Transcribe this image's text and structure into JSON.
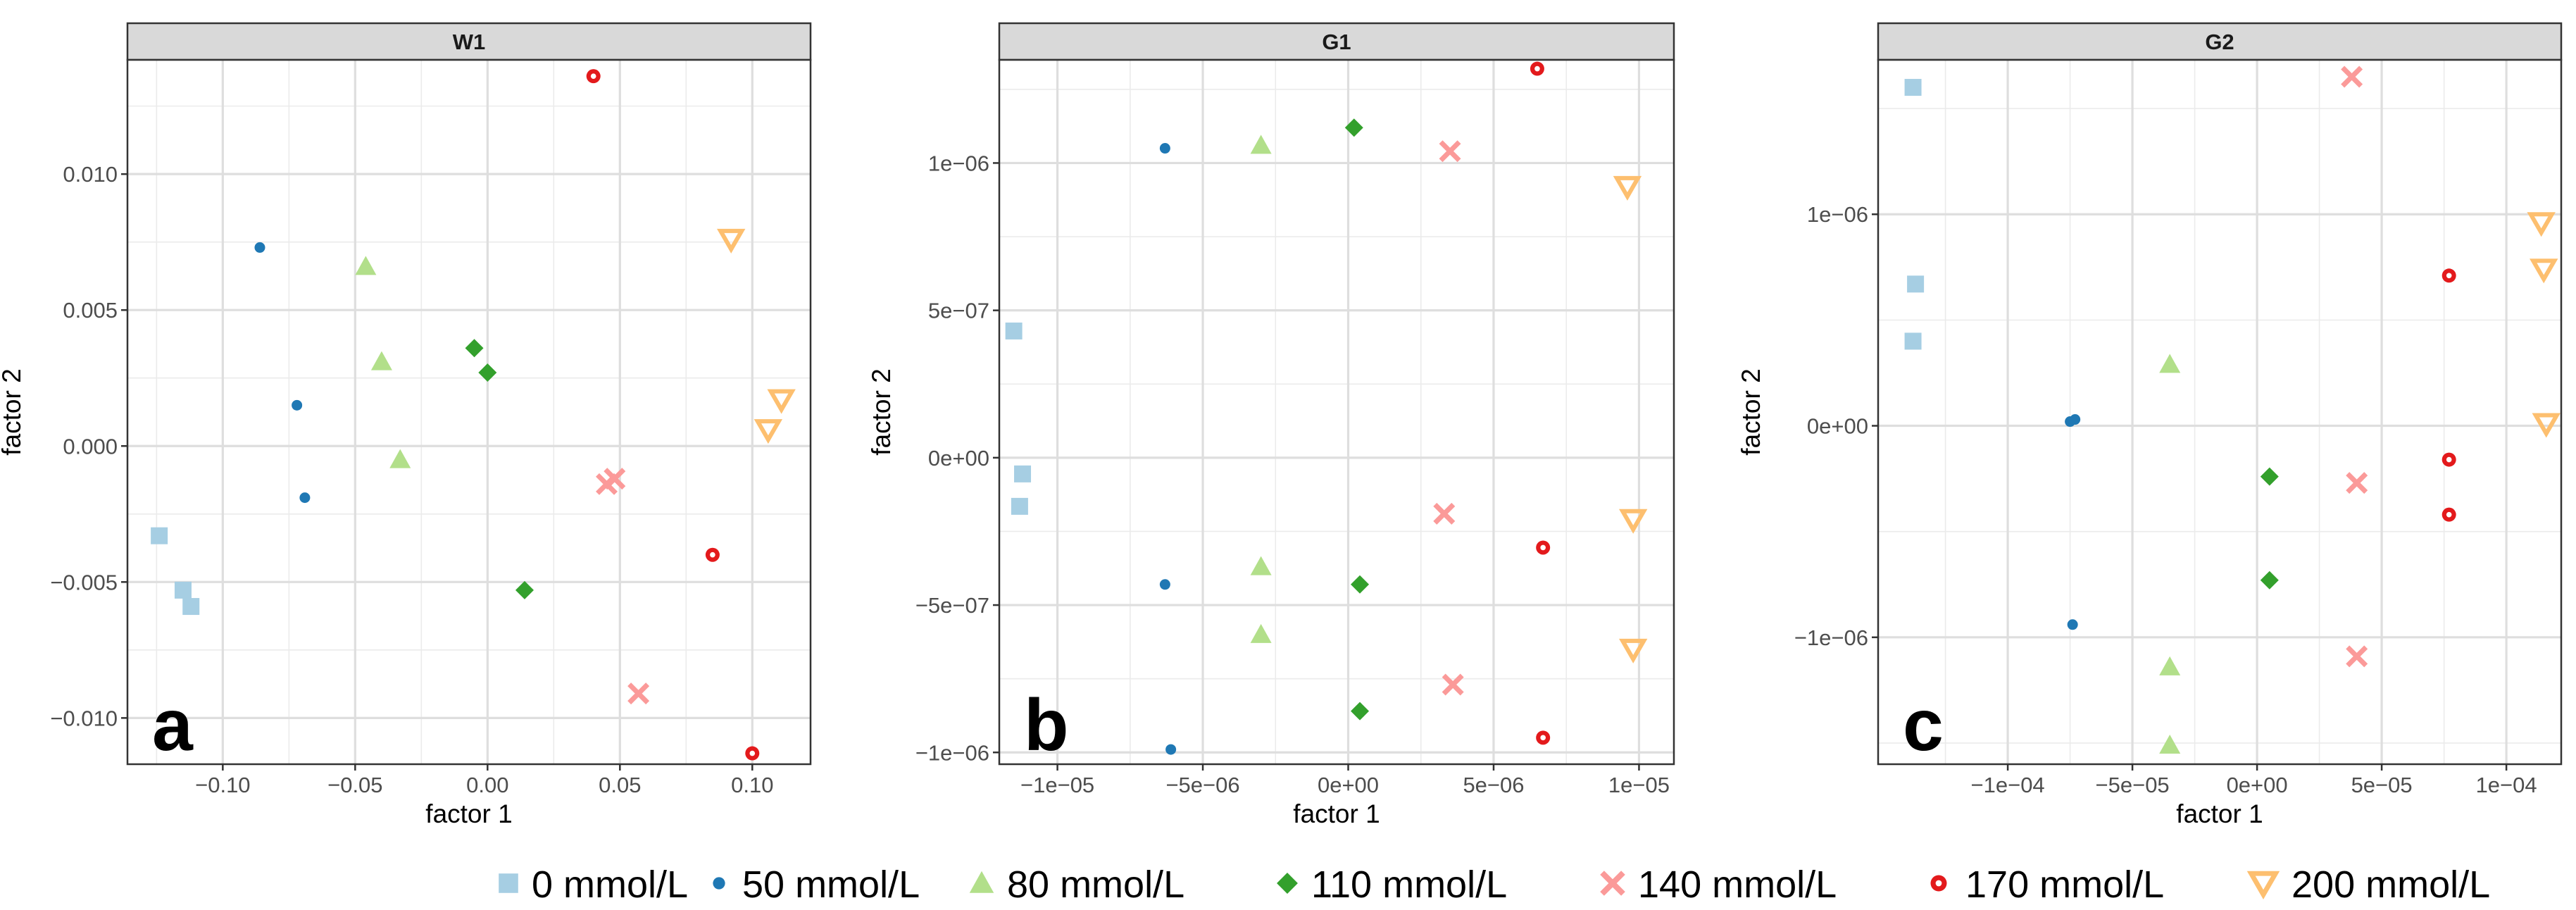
{
  "legend": [
    {
      "label": "0 mmol/L",
      "shape": "square",
      "color": "#a6cee3"
    },
    {
      "label": "50 mmol/L",
      "shape": "dot",
      "color": "#1f78b4"
    },
    {
      "label": "80 mmol/L",
      "shape": "triangle-up",
      "color": "#b2df8a"
    },
    {
      "label": "110 mmol/L",
      "shape": "diamond",
      "color": "#33a02c"
    },
    {
      "label": "140 mmol/L",
      "shape": "cross",
      "color": "#fb9a99"
    },
    {
      "label": "170 mmol/L",
      "shape": "circle-dot",
      "color": "#e31a1c"
    },
    {
      "label": "200 mmol/L",
      "shape": "triangle-down-open",
      "color": "#fdbf6f"
    }
  ],
  "chart_data": [
    {
      "type": "scatter",
      "title": "W1",
      "panel_label": "a",
      "xlabel": "factor 1",
      "ylabel": "factor 2",
      "xlim": [
        -0.136,
        0.122
      ],
      "ylim": [
        -0.0117,
        0.0142
      ],
      "xticks": [
        -0.1,
        -0.05,
        0.0,
        0.05,
        0.1
      ],
      "xtick_labels": [
        "−0.10",
        "−0.05",
        "0.00",
        "0.05",
        "0.10"
      ],
      "yticks": [
        -0.01,
        -0.005,
        0.0,
        0.005,
        0.01
      ],
      "ytick_labels": [
        "−0.010",
        "−0.005",
        "0.000",
        "0.005",
        "0.010"
      ],
      "series": [
        {
          "name": "0 mmol/L",
          "points": [
            [
              -0.124,
              -0.0033
            ],
            [
              -0.115,
              -0.0053
            ],
            [
              -0.112,
              -0.0059
            ]
          ]
        },
        {
          "name": "50 mmol/L",
          "points": [
            [
              -0.086,
              0.0073
            ],
            [
              -0.072,
              0.0015
            ],
            [
              -0.069,
              -0.0019
            ]
          ]
        },
        {
          "name": "80 mmol/L",
          "points": [
            [
              -0.046,
              0.0066
            ],
            [
              -0.04,
              0.0031
            ],
            [
              -0.033,
              -0.0005
            ]
          ]
        },
        {
          "name": "110 mmol/L",
          "points": [
            [
              -0.005,
              0.0036
            ],
            [
              0.0,
              0.0027
            ],
            [
              0.014,
              -0.0053
            ]
          ]
        },
        {
          "name": "140 mmol/L",
          "points": [
            [
              0.045,
              -0.0014
            ],
            [
              0.048,
              -0.0012
            ],
            [
              0.057,
              -0.0091
            ]
          ]
        },
        {
          "name": "170 mmol/L",
          "points": [
            [
              0.04,
              0.0136
            ],
            [
              0.085,
              -0.004
            ],
            [
              0.1,
              -0.0113
            ]
          ]
        },
        {
          "name": "200 mmol/L",
          "points": [
            [
              0.092,
              0.0076
            ],
            [
              0.111,
              0.0017
            ],
            [
              0.106,
              0.0006
            ]
          ]
        }
      ]
    },
    {
      "type": "scatter",
      "title": "G1",
      "panel_label": "b",
      "xlabel": "factor 1",
      "ylabel": "factor 2",
      "xlim": [
        -1.2e-05,
        1.12e-05
      ],
      "ylim": [
        -1.04e-06,
        1.35e-06
      ],
      "xticks": [
        -1e-05,
        -5e-06,
        0,
        5e-06,
        1e-05
      ],
      "xtick_labels": [
        "−1e−05",
        "−5e−06",
        "0e+00",
        "5e−06",
        "1e−05"
      ],
      "yticks": [
        -1e-06,
        -5e-07,
        0,
        5e-07,
        1e-06
      ],
      "ytick_labels": [
        "−1e−06",
        "−5e−07",
        "0e+00",
        "5e−07",
        "1e−06"
      ],
      "series": [
        {
          "name": "0 mmol/L",
          "points": [
            [
              -1.15e-05,
              4.3e-07
            ],
            [
              -1.12e-05,
              -5.5e-08
            ],
            [
              -1.13e-05,
              -1.65e-07
            ]
          ]
        },
        {
          "name": "50 mmol/L",
          "points": [
            [
              -6.3e-06,
              1.05e-06
            ],
            [
              -6.3e-06,
              -4.3e-07
            ],
            [
              -6.1e-06,
              -9.9e-07
            ]
          ]
        },
        {
          "name": "80 mmol/L",
          "points": [
            [
              -3e-06,
              1.06e-06
            ],
            [
              -3e-06,
              -3.7e-07
            ],
            [
              -3e-06,
              -6e-07
            ]
          ]
        },
        {
          "name": "110 mmol/L",
          "points": [
            [
              2e-07,
              1.12e-06
            ],
            [
              4e-07,
              -4.3e-07
            ],
            [
              4e-07,
              -8.6e-07
            ]
          ]
        },
        {
          "name": "140 mmol/L",
          "points": [
            [
              3.5e-06,
              1.04e-06
            ],
            [
              3.3e-06,
              -1.9e-07
            ],
            [
              3.6e-06,
              -7.7e-07
            ]
          ]
        },
        {
          "name": "170 mmol/L",
          "points": [
            [
              6.5e-06,
              1.32e-06
            ],
            [
              6.7e-06,
              -3.05e-07
            ],
            [
              6.7e-06,
              -9.5e-07
            ]
          ]
        },
        {
          "name": "200 mmol/L",
          "points": [
            [
              9.6e-06,
              9.2e-07
            ],
            [
              9.8e-06,
              -2.1e-07
            ],
            [
              9.8e-06,
              -6.5e-07
            ]
          ]
        }
      ]
    },
    {
      "type": "scatter",
      "title": "G2",
      "panel_label": "c",
      "xlabel": "factor 1",
      "ylabel": "factor 2",
      "xlim": [
        -0.000152,
        0.000122
      ],
      "ylim": [
        -1.6e-06,
        1.73e-06
      ],
      "xticks": [
        -0.0001,
        -5e-05,
        0,
        5e-05,
        0.0001
      ],
      "xtick_labels": [
        "−1e−04",
        "−5e−05",
        "0e+00",
        "5e−05",
        "1e−04"
      ],
      "yticks": [
        -1e-06,
        0,
        1e-06
      ],
      "ytick_labels": [
        "−1e−06",
        "0e+00",
        "1e−06"
      ],
      "series": [
        {
          "name": "0 mmol/L",
          "points": [
            [
              -0.000138,
              1.6e-06
            ],
            [
              -0.000137,
              6.7e-07
            ],
            [
              -0.000138,
              4e-07
            ]
          ]
        },
        {
          "name": "50 mmol/L",
          "points": [
            [
              -7.5e-05,
              2e-08
            ],
            [
              -7.3e-05,
              3e-08
            ],
            [
              -7.4e-05,
              -9.4e-07
            ]
          ]
        },
        {
          "name": "80 mmol/L",
          "points": [
            [
              -3.5e-05,
              2.9e-07
            ],
            [
              -3.5e-05,
              -1.14e-06
            ],
            [
              -3.5e-05,
              -1.51e-06
            ]
          ]
        },
        {
          "name": "110 mmol/L",
          "points": [
            [
              5e-06,
              -2.4e-07
            ],
            [
              5e-06,
              -7.3e-07
            ]
          ]
        },
        {
          "name": "140 mmol/L",
          "points": [
            [
              3.8e-05,
              1.65e-06
            ],
            [
              4e-05,
              -2.7e-07
            ],
            [
              4e-05,
              -1.09e-06
            ]
          ]
        },
        {
          "name": "170 mmol/L",
          "points": [
            [
              7.7e-05,
              7.1e-07
            ],
            [
              7.7e-05,
              -1.6e-07
            ],
            [
              7.7e-05,
              -4.2e-07
            ]
          ]
        },
        {
          "name": "200 mmol/L",
          "points": [
            [
              0.000114,
              9.6e-07
            ],
            [
              0.000115,
              7.4e-07
            ],
            [
              0.000116,
              1e-08
            ]
          ]
        }
      ]
    }
  ]
}
